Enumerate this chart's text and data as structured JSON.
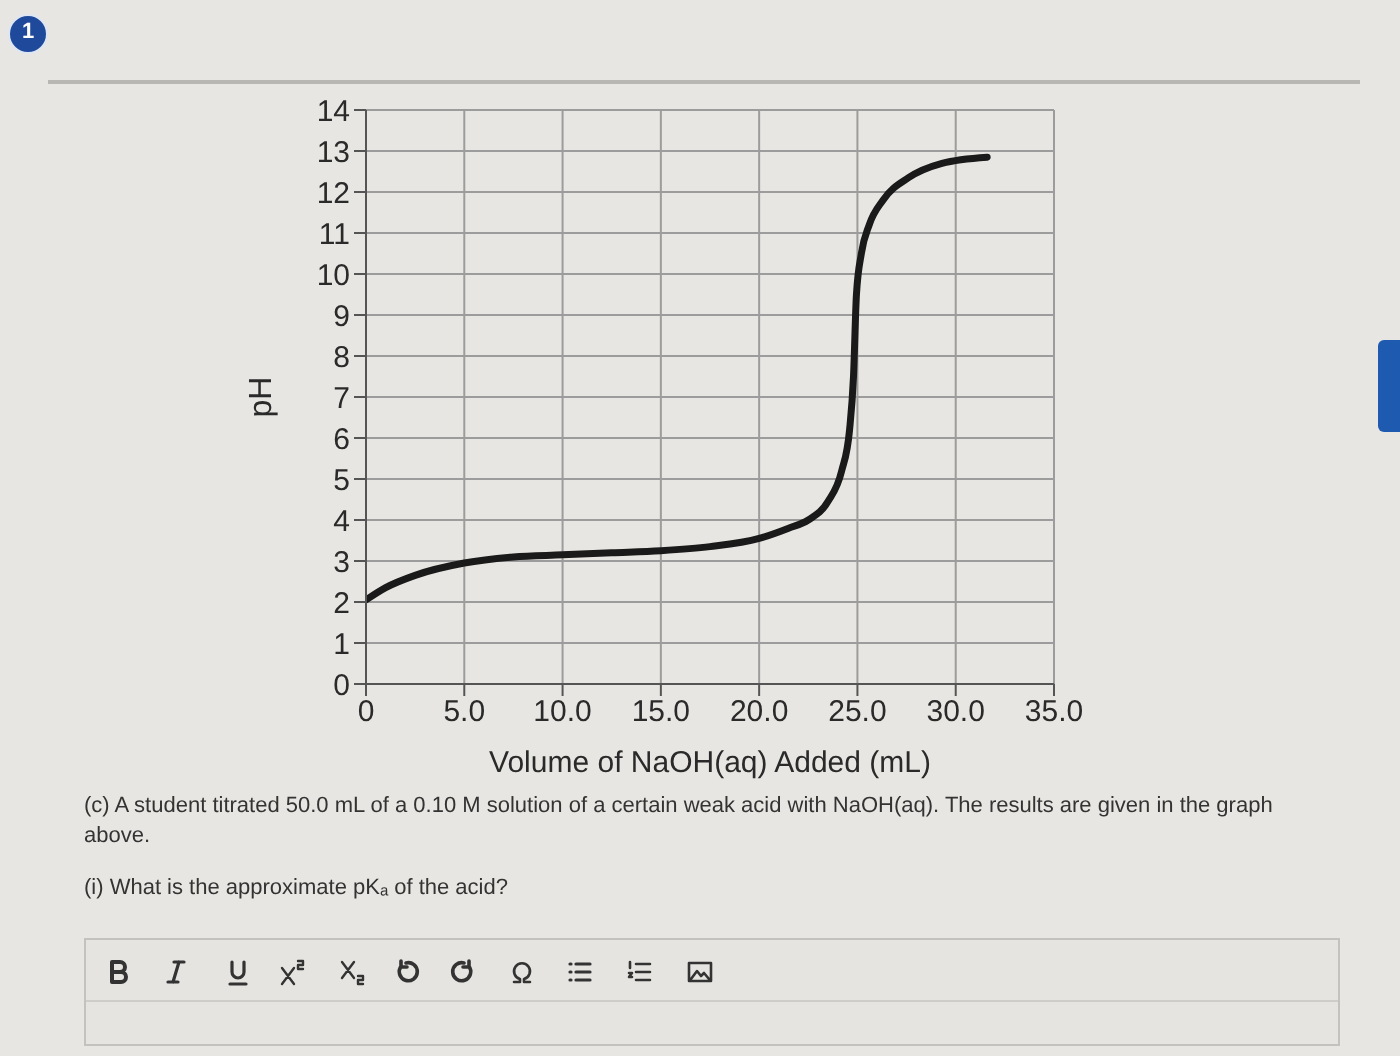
{
  "chart_data": {
    "type": "line",
    "xlabel": "Volume of NaOH(aq) Added (mL)",
    "ylabel": "pH",
    "x": [
      0,
      1,
      2.5,
      5,
      7.5,
      10,
      12.5,
      15,
      17.5,
      20,
      21.5,
      22.5,
      23.5,
      24.2,
      24.6,
      24.8,
      24.95,
      25.2,
      25.6,
      26.3,
      27.6,
      29.3,
      31.6
    ],
    "values": [
      2.05,
      2.35,
      2.65,
      2.95,
      3.1,
      3.15,
      3.2,
      3.25,
      3.35,
      3.55,
      3.8,
      4.0,
      4.45,
      5.2,
      6.2,
      7.5,
      9.5,
      10.5,
      11.2,
      11.8,
      12.35,
      12.7,
      12.85
    ],
    "color": "#1a1a1a",
    "xlim": [
      0,
      35
    ],
    "xticks": [
      0,
      {
        "value": 5,
        "label": "5.0"
      },
      {
        "value": 10,
        "label": "10.0"
      },
      {
        "value": 15,
        "label": "15.0"
      },
      {
        "value": 20,
        "label": "20.0"
      },
      {
        "value": 25,
        "label": "25.0"
      },
      {
        "value": 30,
        "label": "30.0"
      },
      {
        "value": 35,
        "label": "35.0"
      }
    ],
    "ylim": [
      0,
      14
    ],
    "yticks": [
      0,
      1,
      2,
      3,
      4,
      5,
      6,
      7,
      8,
      9,
      10,
      11,
      12,
      13,
      14
    ],
    "grid": true,
    "annotations": [
      "1",
      "(c) A student titrated 50.0 mL of a 0.10 M solution of a certain weak acid with NaOH(aq). The results are given in the graph above.",
      "(i) What is the approximate pKₐ of the acid?"
    ]
  }
}
